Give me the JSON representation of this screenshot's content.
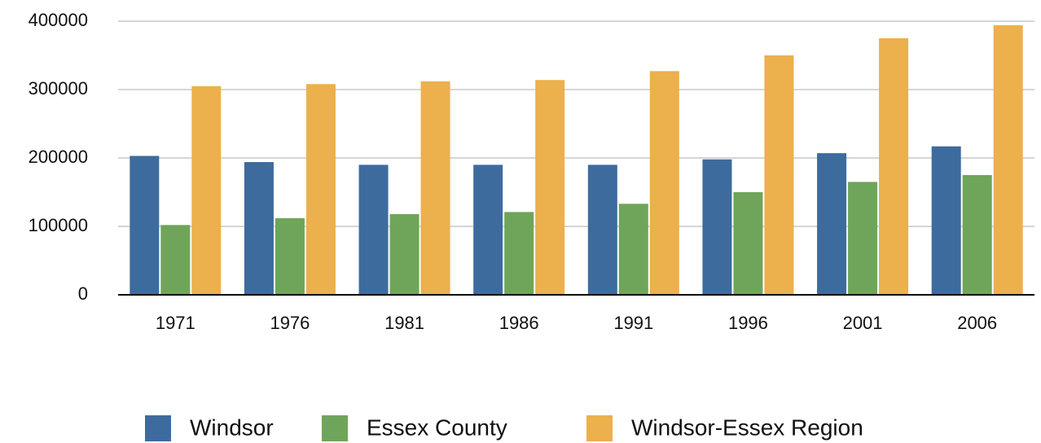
{
  "chart_data": {
    "type": "bar",
    "categories": [
      "1971",
      "1976",
      "1981",
      "1986",
      "1991",
      "1996",
      "2001",
      "2006"
    ],
    "series": [
      {
        "name": "Windsor",
        "color": "#3e6b9e",
        "values": [
          203000,
          194000,
          190000,
          190000,
          190000,
          198000,
          207000,
          217000
        ]
      },
      {
        "name": "Essex County",
        "color": "#6fa55a",
        "values": [
          102000,
          112000,
          118000,
          121000,
          133000,
          150000,
          165000,
          175000
        ]
      },
      {
        "name": "Windsor-Essex Region",
        "color": "#ecb04c",
        "values": [
          305000,
          308000,
          312000,
          314000,
          327000,
          350000,
          375000,
          394000
        ]
      }
    ],
    "ylim": [
      0,
      400000
    ],
    "yticks": [
      0,
      100000,
      200000,
      300000,
      400000
    ],
    "grid": true,
    "legend": "bottom"
  }
}
